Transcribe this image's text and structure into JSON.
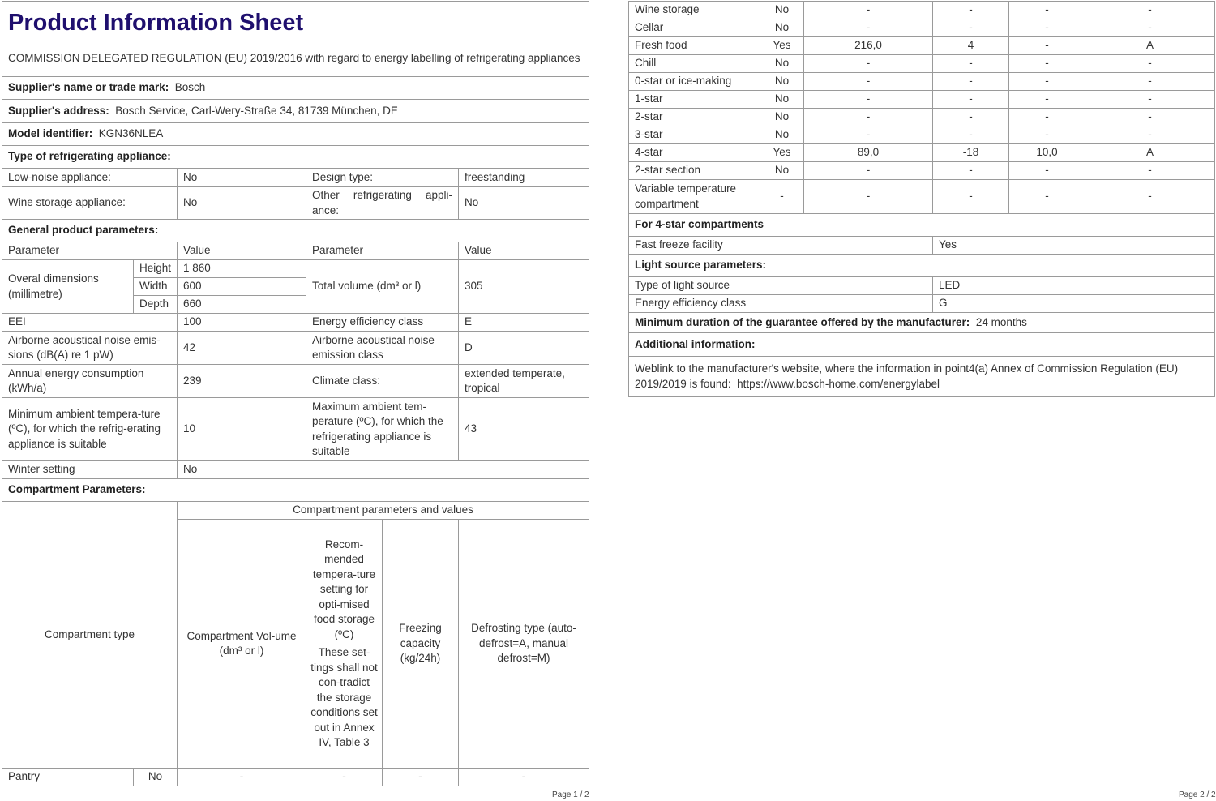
{
  "page1": {
    "title": "Product Information Sheet",
    "regulation": "COMMISSION DELEGATED REGULATION (EU) 2019/2016 with regard to energy labelling of refrigerating appliances",
    "supplier_label": "Supplier's name or trade mark:",
    "supplier_value": "Bosch",
    "address_label": "Supplier's address:",
    "address_value": "Bosch Service, Carl-Wery-Straße 34, 81739 München, DE",
    "model_label": "Model identifier:",
    "model_value": "KGN36NLEA",
    "type_label": "Type of refrigerating appliance:",
    "low_noise_label": "Low-noise appliance:",
    "low_noise_value": "No",
    "design_type_label": "Design type:",
    "design_type_value": "freestanding",
    "wine_label": "Wine storage appliance:",
    "wine_value": "No",
    "other_label": "Other refrigerating appli-ance:",
    "other_value": "No",
    "general_label": "General product parameters:",
    "param_header": "Parameter",
    "value_header": "Value",
    "dimensions_label": "Overal dimensions (millimetre)",
    "height_label": "Height",
    "height_value": "1 860",
    "width_label": "Width",
    "width_value": "600",
    "depth_label": "Depth",
    "depth_value": "660",
    "total_volume_label": "Total volume (dm³ or l)",
    "total_volume_value": "305",
    "eei_label": "EEI",
    "eei_value": "100",
    "ee_class_label": "Energy efficiency class",
    "ee_class_value": "E",
    "noise_label": "Airborne acoustical noise emis-sions (dB(A) re 1 pW)",
    "noise_value": "42",
    "noise_class_label": "Airborne acoustical noise emission class",
    "noise_class_value": "D",
    "annual_label": "Annual energy consumption (kWh/a)",
    "annual_value": "239",
    "climate_label": "Climate class:",
    "climate_value": "extended temperate, tropical",
    "min_ambient_label": "Minimum ambient tempera-ture (ºC), for which the refrig-erating appliance is suitable",
    "min_ambient_value": "10",
    "max_ambient_label": "Maximum ambient tem-perature (ºC), for which the refrigerating appliance is suitable",
    "max_ambient_value": "43",
    "winter_label": "Winter setting",
    "winter_value": "No",
    "compartment_label": "Compartment Parameters:",
    "comp_type_header": "Compartment type",
    "comp_values_header": "Compartment parameters and values",
    "comp_volume_header": "Compartment Vol-ume (dm³ or l)",
    "comp_temp_header": "Recom-mended tempera-ture setting for opti-mised food storage (ºC)",
    "comp_temp_note": "These set-tings shall not con-tradict the storage conditions set out in Annex IV, Table 3",
    "comp_freezing_header": "Freezing capacity (kg/24h)",
    "comp_defrost_header": "Defrosting type (auto-defrost=A, manual defrost=M)",
    "pantry": [
      "Pantry",
      "No",
      "-",
      "-",
      "-",
      "-"
    ],
    "page_number": "Page 1 / 2"
  },
  "page2": {
    "compartments": [
      [
        "Wine storage",
        "No",
        "-",
        "-",
        "-",
        "-"
      ],
      [
        "Cellar",
        "No",
        "-",
        "-",
        "-",
        "-"
      ],
      [
        "Fresh food",
        "Yes",
        "216,0",
        "4",
        "-",
        "A"
      ],
      [
        "Chill",
        "No",
        "-",
        "-",
        "-",
        "-"
      ],
      [
        "0-star or ice-making",
        "No",
        "-",
        "-",
        "-",
        "-"
      ],
      [
        "1-star",
        "No",
        "-",
        "-",
        "-",
        "-"
      ],
      [
        "2-star",
        "No",
        "-",
        "-",
        "-",
        "-"
      ],
      [
        "3-star",
        "No",
        "-",
        "-",
        "-",
        "-"
      ],
      [
        "4-star",
        "Yes",
        "89,0",
        "-18",
        "10,0",
        "A"
      ],
      [
        "2-star section",
        "No",
        "-",
        "-",
        "-",
        "-"
      ],
      [
        "Variable temperature compartment",
        "-",
        "-",
        "-",
        "-",
        "-"
      ]
    ],
    "four_star_label": "For 4-star compartments",
    "fast_freeze_label": "Fast freeze facility",
    "fast_freeze_value": "Yes",
    "light_label": "Light source parameters:",
    "light_type_label": "Type of light source",
    "light_type_value": "LED",
    "light_class_label": "Energy efficiency class",
    "light_class_value": "G",
    "guarantee_label": "Minimum duration of the guarantee offered by the manufacturer:",
    "guarantee_value": "24 months",
    "additional_label": "Additional information:",
    "weblink_text": "Weblink to the manufacturer's website, where the information in point4(a) Annex of Commission Regulation (EU) 2019/2019 is found:",
    "weblink_url": "https://www.bosch-home.com/energylabel",
    "page_number": "Page 2 / 2"
  },
  "colors": {
    "title": "#1f0f6e",
    "border": "#9a9a9a",
    "text": "#333333"
  }
}
